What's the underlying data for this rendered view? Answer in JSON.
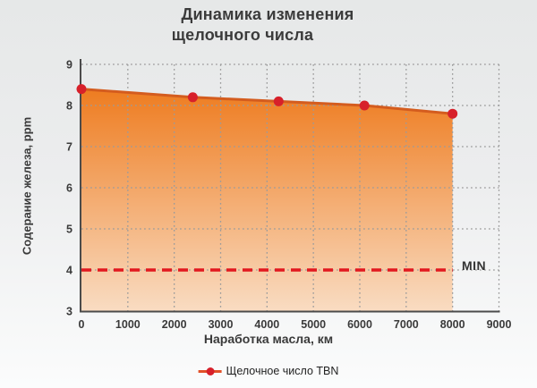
{
  "title": {
    "line1": "Динамика изменения",
    "line2": "щелочного числа"
  },
  "y_axis_label": "Содерание железа, ppm",
  "x_axis_label": "Наработка масла, км",
  "min_label": "MIN",
  "legend": {
    "series_label": "Щелочное число TBN"
  },
  "colors": {
    "point_red": "#d7202a",
    "dash_red": "#e2181f",
    "line_orange": "#d45c1e",
    "legend_line_orange": "#e25129",
    "fill_top": "#ee7c20",
    "fill_bottom": "#f9dcc2",
    "grid": "#9b9b9b",
    "axis": "#4b4b4b",
    "tick_text": "#3a3a3a"
  },
  "chart_data": {
    "type": "area",
    "title": "Динамика изменения щелочного числа",
    "xlabel": "Наработка масла, км",
    "ylabel": "Содерание железа, ppm",
    "series": [
      {
        "name": "Щелочное число TBN",
        "x": [
          0,
          2400,
          4250,
          6100,
          8000
        ],
        "values": [
          8.4,
          8.2,
          8.1,
          8.0,
          7.8
        ]
      }
    ],
    "x_ticks": [
      0,
      1000,
      2000,
      3000,
      4000,
      5000,
      6000,
      7000,
      8000,
      9000
    ],
    "y_ticks": [
      3,
      4,
      5,
      6,
      7,
      8,
      9
    ],
    "xlim": [
      0,
      9000
    ],
    "ylim": [
      3,
      9
    ],
    "grid": true,
    "legend_position": "bottom",
    "reference_line": {
      "value": 4,
      "label": "MIN",
      "x_start": 0,
      "x_end": 8000,
      "style": "dashed",
      "color": "#e2181f"
    }
  }
}
